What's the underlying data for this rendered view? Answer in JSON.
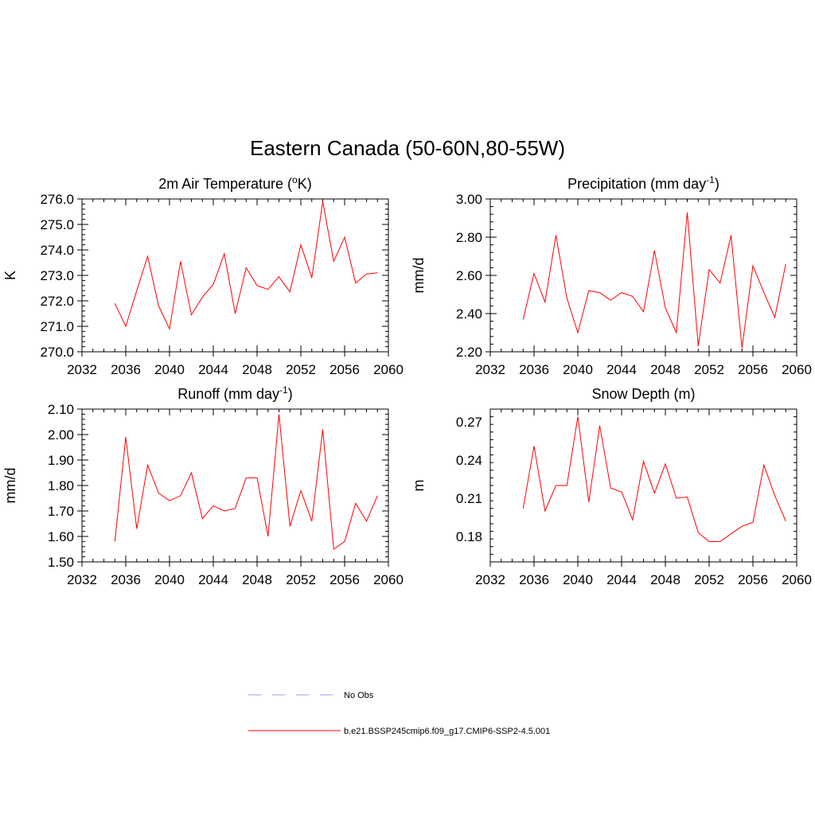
{
  "title": "Eastern Canada (50-60N,80-55W)",
  "colors": {
    "series": "#ff0000",
    "obs": "#9999ff",
    "axes": "#000000"
  },
  "legend": [
    {
      "label": "No Obs",
      "style": "dashed",
      "color": "#9999ff"
    },
    {
      "label": "b.e21.BSSP245cmip6.f09_g17.CMIP6-SSP2-4.5.001",
      "style": "solid",
      "color": "#ff0000"
    }
  ],
  "chart_data": [
    {
      "type": "line",
      "title": {
        "main": "2m Air Temperature (",
        "sup": "o",
        "rest": "K)"
      },
      "ylabel": "K",
      "xlim": [
        2032,
        2060
      ],
      "xticks": [
        "2032",
        "2036",
        "2040",
        "2044",
        "2048",
        "2052",
        "2056",
        "2060"
      ],
      "ylim": [
        270.0,
        276.0
      ],
      "yticks": [
        "270.0",
        "271.0",
        "272.0",
        "273.0",
        "274.0",
        "275.0",
        "276.0"
      ],
      "x": [
        2035,
        2036,
        2037,
        2038,
        2039,
        2040,
        2041,
        2042,
        2043,
        2044,
        2045,
        2046,
        2047,
        2048,
        2049,
        2050,
        2051,
        2052,
        2053,
        2054,
        2055,
        2056,
        2057,
        2058,
        2059
      ],
      "values": [
        271.9,
        271.0,
        272.4,
        273.75,
        271.8,
        270.9,
        273.55,
        271.45,
        272.15,
        272.65,
        273.85,
        271.5,
        273.3,
        272.6,
        272.45,
        272.95,
        272.35,
        274.2,
        272.9,
        275.9,
        273.55,
        274.5,
        272.7,
        273.05,
        273.1
      ]
    },
    {
      "type": "line",
      "title": {
        "main": "Precipitation (mm day",
        "sup": "-1",
        "rest": ")"
      },
      "ylabel": "mm/d",
      "xlim": [
        2032,
        2060
      ],
      "xticks": [
        "2032",
        "2036",
        "2040",
        "2044",
        "2048",
        "2052",
        "2056",
        "2060"
      ],
      "ylim": [
        2.2,
        3.0
      ],
      "yticks": [
        "2.20",
        "2.40",
        "2.60",
        "2.80",
        "3.00"
      ],
      "x": [
        2035,
        2036,
        2037,
        2038,
        2039,
        2040,
        2041,
        2042,
        2043,
        2044,
        2045,
        2046,
        2047,
        2048,
        2049,
        2050,
        2051,
        2052,
        2053,
        2054,
        2055,
        2056,
        2057,
        2058,
        2059
      ],
      "values": [
        2.37,
        2.61,
        2.46,
        2.81,
        2.48,
        2.3,
        2.52,
        2.51,
        2.47,
        2.51,
        2.49,
        2.41,
        2.73,
        2.43,
        2.3,
        2.93,
        2.23,
        2.63,
        2.56,
        2.81,
        2.22,
        2.65,
        2.51,
        2.38,
        2.66
      ]
    },
    {
      "type": "line",
      "title": {
        "main": "Runoff (mm day",
        "sup": "-1",
        "rest": ")"
      },
      "ylabel": "mm/d",
      "xlim": [
        2032,
        2060
      ],
      "xticks": [
        "2032",
        "2036",
        "2040",
        "2044",
        "2048",
        "2052",
        "2056",
        "2060"
      ],
      "ylim": [
        1.5,
        2.1
      ],
      "yticks": [
        "1.50",
        "1.60",
        "1.70",
        "1.80",
        "1.90",
        "2.00",
        "2.10"
      ],
      "x": [
        2035,
        2036,
        2037,
        2038,
        2039,
        2040,
        2041,
        2042,
        2043,
        2044,
        2045,
        2046,
        2047,
        2048,
        2049,
        2050,
        2051,
        2052,
        2053,
        2054,
        2055,
        2056,
        2057,
        2058,
        2059
      ],
      "values": [
        1.58,
        1.99,
        1.63,
        1.88,
        1.77,
        1.74,
        1.76,
        1.85,
        1.67,
        1.72,
        1.7,
        1.71,
        1.83,
        1.83,
        1.6,
        2.08,
        1.64,
        1.78,
        1.66,
        2.02,
        1.55,
        1.58,
        1.73,
        1.66,
        1.76
      ]
    },
    {
      "type": "line",
      "title": {
        "main": "Snow Depth (m)",
        "sup": "",
        "rest": ""
      },
      "ylabel": "m",
      "xlim": [
        2032,
        2060
      ],
      "xticks": [
        "2032",
        "2036",
        "2040",
        "2044",
        "2048",
        "2052",
        "2056",
        "2060"
      ],
      "ylim": [
        0.16,
        0.28
      ],
      "yticks": [
        "0.18",
        "0.21",
        "0.24",
        "0.27"
      ],
      "x": [
        2035,
        2036,
        2037,
        2038,
        2039,
        2040,
        2041,
        2042,
        2043,
        2044,
        2045,
        2046,
        2047,
        2048,
        2049,
        2050,
        2051,
        2052,
        2053,
        2054,
        2055,
        2056,
        2057,
        2058,
        2059
      ],
      "values": [
        0.202,
        0.251,
        0.2,
        0.22,
        0.22,
        0.274,
        0.207,
        0.267,
        0.218,
        0.215,
        0.193,
        0.239,
        0.214,
        0.237,
        0.21,
        0.211,
        0.183,
        0.176,
        0.176,
        0.182,
        0.188,
        0.191,
        0.236,
        0.212,
        0.192
      ]
    }
  ]
}
